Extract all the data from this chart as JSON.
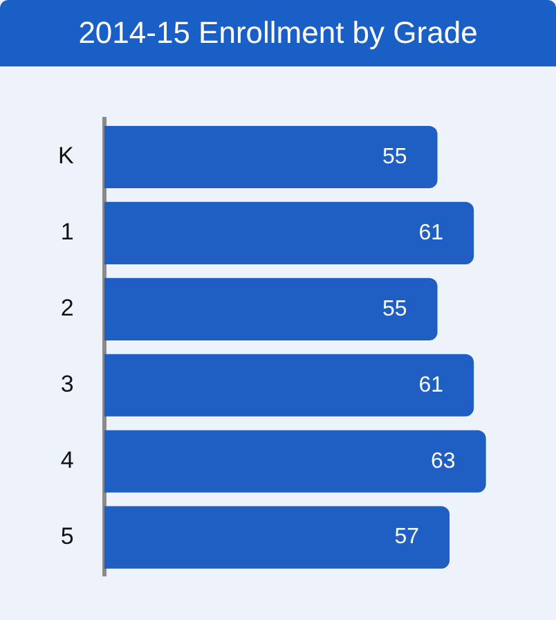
{
  "chart_data": {
    "type": "bar",
    "orientation": "horizontal",
    "title": "2014-15 Enrollment by Grade",
    "categories": [
      "K",
      "1",
      "2",
      "3",
      "4",
      "5"
    ],
    "values": [
      55,
      61,
      55,
      61,
      63,
      57
    ],
    "color": "#1f5fc4",
    "data_labels": true
  }
}
